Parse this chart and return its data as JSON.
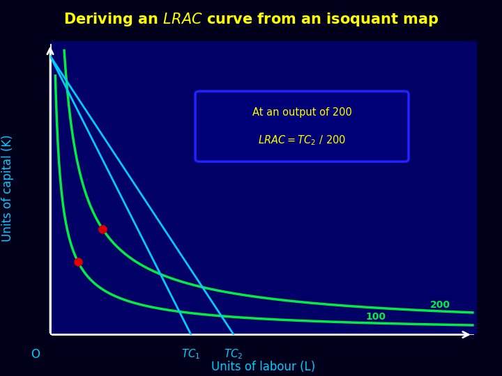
{
  "title": "Deriving an $\\it{LRAC}$ curve from an isoquant map",
  "xlabel": "Units of labour (L)",
  "ylabel": "Units of capital (K)",
  "origin_label": "O",
  "bg_outer": "#00001a",
  "bg_inner": "#000066",
  "isoquant_color": "#00ee44",
  "isocost_color": "#00ccff",
  "dot_color": "#dd0000",
  "label_color": "#00ee44",
  "annotation_bg": "#000077",
  "annotation_border": "#2222ff",
  "axis_color": "#ffffff",
  "title_color": "#ffff00",
  "axis_label_color": "#00ccff",
  "isoquant_labels": [
    "100",
    "200"
  ],
  "isocost_labels": [
    "$TC_1$",
    "$TC_2$"
  ],
  "xlim": [
    0,
    10
  ],
  "ylim": [
    0,
    10
  ],
  "a1": 1.8,
  "a2": 4.2,
  "exp": 0.75,
  "ic1_ix": 3.3,
  "ic1_iy": 9.5,
  "ic2_ix": 4.3,
  "ic2_iy": 9.5
}
